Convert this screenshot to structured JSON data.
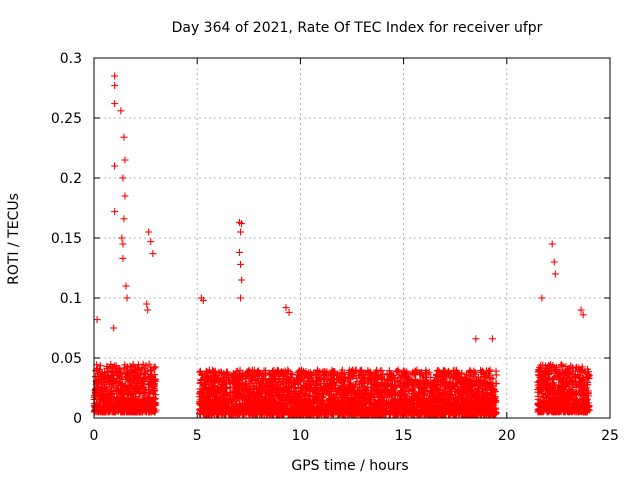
{
  "chart_data": {
    "type": "scatter",
    "title": "Day 364 of 2021, Rate Of TEC Index for receiver ufpr",
    "xlabel": "GPS time / hours",
    "ylabel": "ROTI / TECUs",
    "xlim": [
      0,
      25
    ],
    "ylim": [
      0,
      0.3
    ],
    "xticks": [
      0,
      5,
      10,
      15,
      20,
      25
    ],
    "yticks": [
      0,
      0.05,
      0.1,
      0.15,
      0.2,
      0.25,
      0.3
    ],
    "xtick_labels": [
      "0",
      "5",
      "10",
      "15",
      "20",
      "25"
    ],
    "ytick_labels": [
      "0",
      "0.05",
      "0.1",
      "0.15",
      "0.2",
      "0.25",
      "0.3"
    ],
    "grid": true,
    "marker": "+",
    "color": "#ff0000",
    "series": [
      {
        "name": "ROTI",
        "notable_points": [
          {
            "x": 1.0,
            "y": 0.285
          },
          {
            "x": 1.0,
            "y": 0.277
          },
          {
            "x": 1.0,
            "y": 0.262
          },
          {
            "x": 1.3,
            "y": 0.256
          },
          {
            "x": 1.45,
            "y": 0.234
          },
          {
            "x": 1.5,
            "y": 0.215
          },
          {
            "x": 1.4,
            "y": 0.2
          },
          {
            "x": 1.0,
            "y": 0.21
          },
          {
            "x": 1.5,
            "y": 0.185
          },
          {
            "x": 1.0,
            "y": 0.172
          },
          {
            "x": 1.45,
            "y": 0.166
          },
          {
            "x": 1.35,
            "y": 0.15
          },
          {
            "x": 1.4,
            "y": 0.145
          },
          {
            "x": 1.4,
            "y": 0.133
          },
          {
            "x": 2.65,
            "y": 0.155
          },
          {
            "x": 2.75,
            "y": 0.147
          },
          {
            "x": 2.85,
            "y": 0.137
          },
          {
            "x": 0.15,
            "y": 0.082
          },
          {
            "x": 0.95,
            "y": 0.075
          },
          {
            "x": 1.55,
            "y": 0.11
          },
          {
            "x": 1.6,
            "y": 0.1
          },
          {
            "x": 2.55,
            "y": 0.095
          },
          {
            "x": 2.6,
            "y": 0.09
          },
          {
            "x": 7.05,
            "y": 0.163
          },
          {
            "x": 7.15,
            "y": 0.162
          },
          {
            "x": 7.1,
            "y": 0.155
          },
          {
            "x": 7.05,
            "y": 0.138
          },
          {
            "x": 7.1,
            "y": 0.128
          },
          {
            "x": 7.15,
            "y": 0.115
          },
          {
            "x": 7.1,
            "y": 0.1
          },
          {
            "x": 5.2,
            "y": 0.1
          },
          {
            "x": 5.3,
            "y": 0.098
          },
          {
            "x": 9.3,
            "y": 0.092
          },
          {
            "x": 9.45,
            "y": 0.088
          },
          {
            "x": 21.7,
            "y": 0.1
          },
          {
            "x": 22.2,
            "y": 0.145
          },
          {
            "x": 22.3,
            "y": 0.13
          },
          {
            "x": 22.35,
            "y": 0.12
          },
          {
            "x": 23.6,
            "y": 0.09
          },
          {
            "x": 23.7,
            "y": 0.086
          },
          {
            "x": 19.3,
            "y": 0.066
          },
          {
            "x": 18.5,
            "y": 0.066
          }
        ],
        "clusters": [
          {
            "x_range": [
              0.0,
              3.0
            ],
            "y_range": [
              0.005,
              0.045
            ]
          },
          {
            "x_range": [
              5.1,
              19.5
            ],
            "y_range": [
              0.003,
              0.04
            ]
          },
          {
            "x_range": [
              21.5,
              24.0
            ],
            "y_range": [
              0.005,
              0.045
            ]
          }
        ]
      }
    ]
  }
}
